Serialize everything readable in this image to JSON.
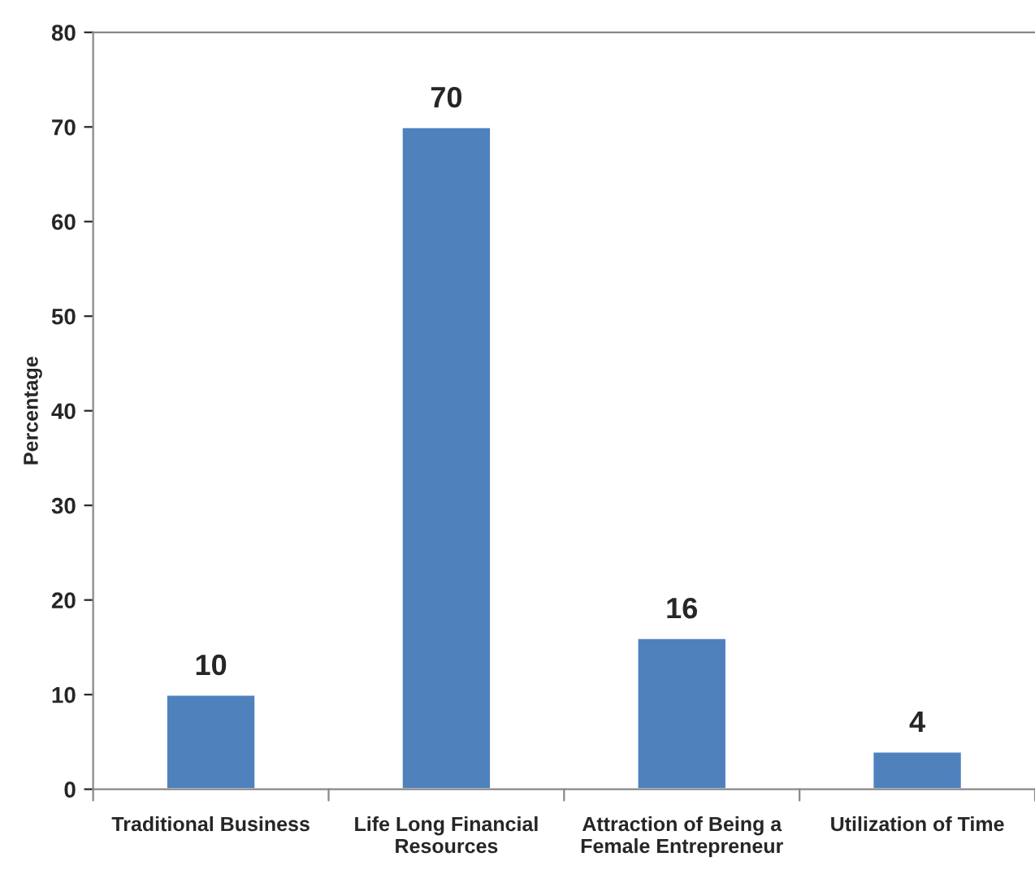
{
  "chart_data": {
    "type": "bar",
    "ylabel": "Percentage",
    "categories": [
      "Traditional Business",
      "Life Long Financial\nResources",
      "Attraction of Being a\nFemale Entrepreneur",
      "Utilization of Time"
    ],
    "values": [
      10,
      70,
      16,
      4
    ],
    "color": "#4f81bd",
    "ylim": [
      0,
      80
    ],
    "yticks": [
      0,
      10,
      20,
      30,
      40,
      50,
      60,
      70,
      80
    ],
    "data_labels": true,
    "grid": false,
    "legend": false
  }
}
